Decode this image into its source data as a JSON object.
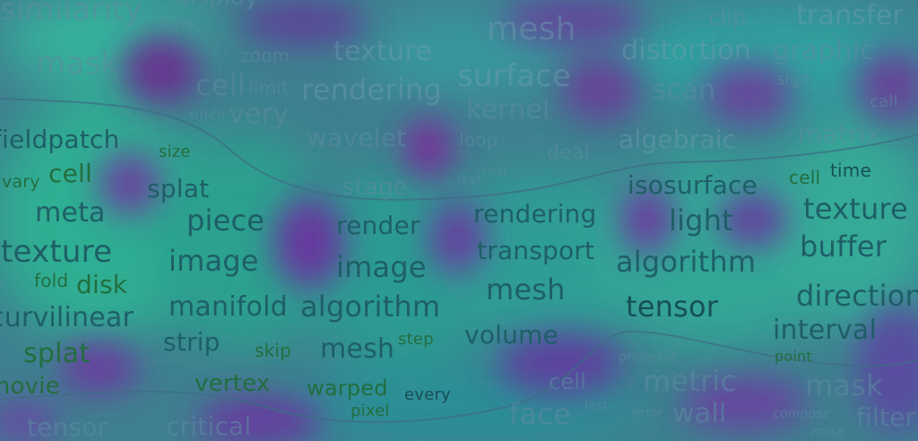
{
  "words": {
    "top": [
      "similarity",
      "display",
      "lens",
      "mesh",
      "clip",
      "transfer",
      "mask",
      "zoom",
      "texture",
      "distortion",
      "graphic",
      "surface",
      "cell",
      "limit",
      "rendering",
      "scan",
      "sign",
      "call",
      "once",
      "very",
      "kernel",
      "wavelet",
      "loop",
      "deal",
      "algebraic",
      "matrix",
      "leaf",
      "real",
      "stage"
    ],
    "middle": [
      "fieldpatch",
      "size",
      "vary",
      "cell",
      "splat",
      "meta",
      "texture",
      "fold",
      "disk",
      "curvilinear",
      "splat",
      "movie",
      "piece",
      "image",
      "manifold",
      "strip",
      "skip",
      "vertex",
      "render",
      "image",
      "algorithm",
      "mesh",
      "step",
      "warped",
      "every",
      "pixel",
      "rendering",
      "transport",
      "mesh",
      "volume",
      "isosurface",
      "light",
      "algorithm",
      "tensor",
      "cell",
      "time",
      "texture",
      "buffer",
      "direction",
      "interval",
      "point"
    ],
    "bottom": [
      "tensor",
      "critical",
      "cell",
      "face",
      "last",
      "metric",
      "error",
      "wall",
      "mask",
      "compose",
      "filter",
      "noise",
      "projector"
    ]
  }
}
